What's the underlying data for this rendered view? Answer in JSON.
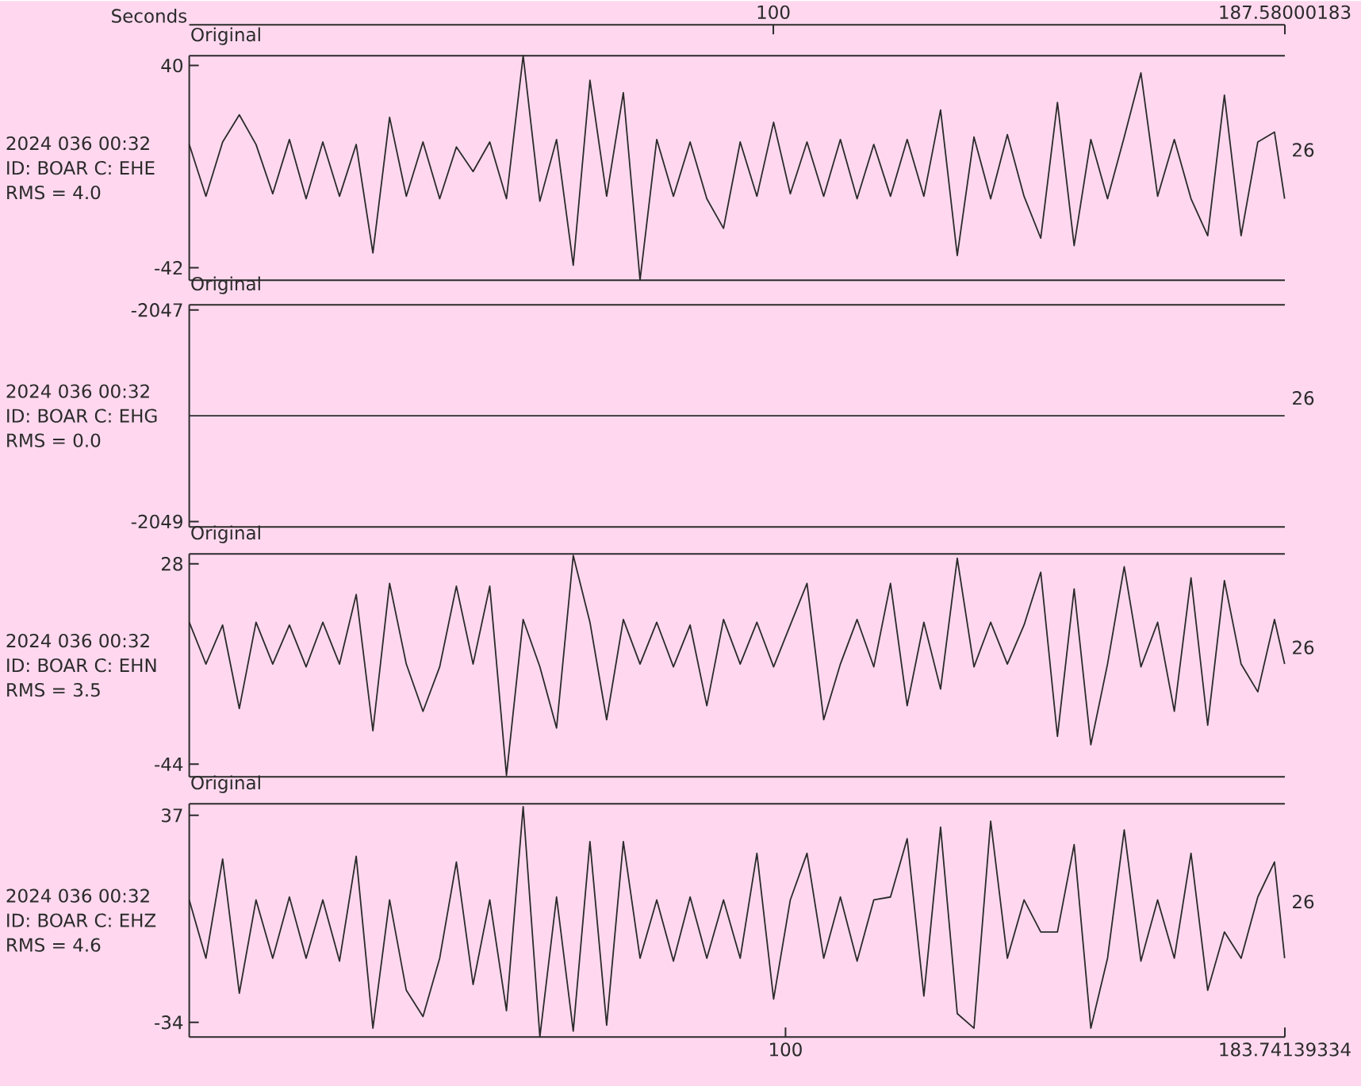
{
  "chart_data": [
    {
      "type": "line",
      "title": "Original",
      "x2label": "Seconds",
      "x2lim": [
        0,
        187.58000183
      ],
      "x2ticks": [
        100,
        187.58000183
      ],
      "xlim": [
        0,
        183.74139334
      ],
      "ylim": [
        -47,
        44
      ],
      "yticks": [
        40,
        -42
      ],
      "tick_labels": "y",
      "color": "#2b2b2b",
      "annotations": [
        "2024 036 00:32",
        "ID: BOAR C: EHE",
        "RMS = 4.0",
        "26"
      ],
      "x": [
        0,
        2.8,
        5.6,
        8.4,
        11.2,
        14,
        16.8,
        19.6,
        22.4,
        25.2,
        28,
        30.8,
        33.6,
        36.4,
        39.2,
        42,
        44.8,
        47.6,
        50.4,
        53.2,
        56,
        58.8,
        61.6,
        64.4,
        67.2,
        70,
        72.8,
        75.6,
        78.4,
        81.2,
        84,
        86.8,
        89.6,
        92.4,
        95.2,
        98,
        100.8,
        103.6,
        106.4,
        109.2,
        112,
        114.8,
        117.6,
        120.4,
        123.2,
        126,
        128.8,
        131.6,
        134.4,
        137.2,
        140,
        142.8,
        145.6,
        148.4,
        151.2,
        154,
        156.8,
        159.6,
        162.4,
        165.2,
        168,
        170.8,
        173.6,
        176.4,
        179.2,
        182,
        183.7
      ],
      "values": [
        8,
        -13,
        9,
        20,
        8,
        -12,
        10,
        -14,
        9,
        -13,
        8,
        -36,
        19,
        -13,
        9,
        -14,
        7,
        -3,
        9,
        -14,
        44,
        -15,
        10,
        -41,
        34,
        -13,
        29,
        -47,
        10,
        -13,
        9,
        -14,
        -26,
        9,
        -13,
        17,
        -12,
        9,
        -13,
        10,
        -14,
        8,
        -13,
        10,
        -13,
        22,
        -37,
        11,
        -14,
        12,
        -13,
        -30,
        25,
        -33,
        10,
        -14,
        11,
        37,
        -13,
        10,
        -14,
        -29,
        28,
        -29,
        9,
        13,
        -14
      ]
    },
    {
      "type": "line",
      "title": "Original",
      "xlim": [
        0,
        183.74139334
      ],
      "ylim": [
        -2049.05,
        -2046.95
      ],
      "yticks": [
        -2047,
        -2049
      ],
      "tick_labels": "y",
      "color": "#2b2b2b",
      "annotations": [
        "2024 036 00:32",
        "ID: BOAR C: EHG",
        "RMS = 0.0",
        "26"
      ],
      "x": [
        0,
        183.7
      ],
      "values": [
        -2048,
        -2048
      ]
    },
    {
      "type": "line",
      "title": "Original",
      "xlim": [
        0,
        183.74139334
      ],
      "ylim": [
        -48.5,
        31.6
      ],
      "yticks": [
        28,
        -44
      ],
      "tick_labels": "y",
      "color": "#2b2b2b",
      "annotations": [
        "2024 036 00:32",
        "ID: BOAR C: EHN",
        "RMS = 3.5",
        "26"
      ],
      "x": [
        0,
        2.8,
        5.6,
        8.4,
        11.2,
        14,
        16.8,
        19.6,
        22.4,
        25.2,
        28,
        30.8,
        33.6,
        36.4,
        39.2,
        42,
        44.8,
        47.6,
        50.4,
        53.2,
        56,
        58.8,
        61.6,
        64.4,
        67.2,
        70,
        72.8,
        75.6,
        78.4,
        81.2,
        84,
        86.8,
        89.6,
        92.4,
        95.2,
        98,
        100.8,
        103.6,
        106.4,
        109.2,
        112,
        114.8,
        117.6,
        120.4,
        123.2,
        126,
        128.8,
        131.6,
        134.4,
        137.2,
        140,
        142.8,
        145.6,
        148.4,
        151.2,
        154,
        156.8,
        159.6,
        162.4,
        165.2,
        168,
        170.8,
        173.6,
        176.4,
        179.2,
        182,
        183.7
      ],
      "values": [
        7,
        -8,
        6,
        -24,
        7,
        -8,
        6,
        -9,
        7,
        -8,
        17,
        -32,
        21,
        -8,
        -25,
        -9,
        20,
        -8,
        20,
        -48,
        8,
        -9,
        -31,
        31,
        7,
        -28,
        8,
        -8,
        7,
        -9,
        6,
        -23,
        8,
        -8,
        7,
        -9,
        6,
        21,
        -28,
        -8,
        8,
        -9,
        21,
        -23,
        7,
        -17,
        30,
        -9,
        7,
        -8,
        6,
        25,
        -34,
        19,
        -37,
        -8,
        27,
        -9,
        7,
        -25,
        23,
        -30,
        22,
        -8,
        -18,
        8,
        -8
      ]
    },
    {
      "type": "line",
      "title": "Original",
      "xlim": [
        0,
        183.74139334
      ],
      "xticks": [
        100,
        183.74139334
      ],
      "ylim": [
        -39,
        41
      ],
      "yticks": [
        37,
        -34
      ],
      "color": "#2b2b2b",
      "annotations": [
        "2024 036 00:32",
        "ID: BOAR C: EHZ",
        "RMS = 4.6",
        "26"
      ],
      "x": [
        0,
        2.8,
        5.6,
        8.4,
        11.2,
        14,
        16.8,
        19.6,
        22.4,
        25.2,
        28,
        30.8,
        33.6,
        36.4,
        39.2,
        42,
        44.8,
        47.6,
        50.4,
        53.2,
        56,
        58.8,
        61.6,
        64.4,
        67.2,
        70,
        72.8,
        75.6,
        78.4,
        81.2,
        84,
        86.8,
        89.6,
        92.4,
        95.2,
        98,
        100.8,
        103.6,
        106.4,
        109.2,
        112,
        114.8,
        117.6,
        120.4,
        123.2,
        126,
        128.8,
        131.6,
        134.4,
        137.2,
        140,
        142.8,
        145.6,
        148.4,
        151.2,
        154,
        156.8,
        159.6,
        162.4,
        165.2,
        168,
        170.8,
        173.6,
        176.4,
        179.2,
        182,
        183.7
      ],
      "values": [
        8,
        -12,
        22,
        -24,
        8,
        -12,
        9,
        -12,
        8,
        -13,
        23,
        -36,
        8,
        -23,
        -32,
        -12,
        21,
        -21,
        8,
        -30,
        40,
        -39,
        9,
        -37,
        28,
        -35,
        28,
        -12,
        8,
        -13,
        9,
        -12,
        8,
        -12,
        24,
        -26,
        8,
        24,
        -12,
        9,
        -13,
        8,
        9,
        29,
        -25,
        33,
        -31,
        -36,
        35,
        -12,
        8,
        -3,
        -3,
        27,
        -36,
        -12,
        32,
        -13,
        8,
        -12,
        24,
        -23,
        -3,
        -12,
        9,
        21,
        -12
      ]
    }
  ]
}
